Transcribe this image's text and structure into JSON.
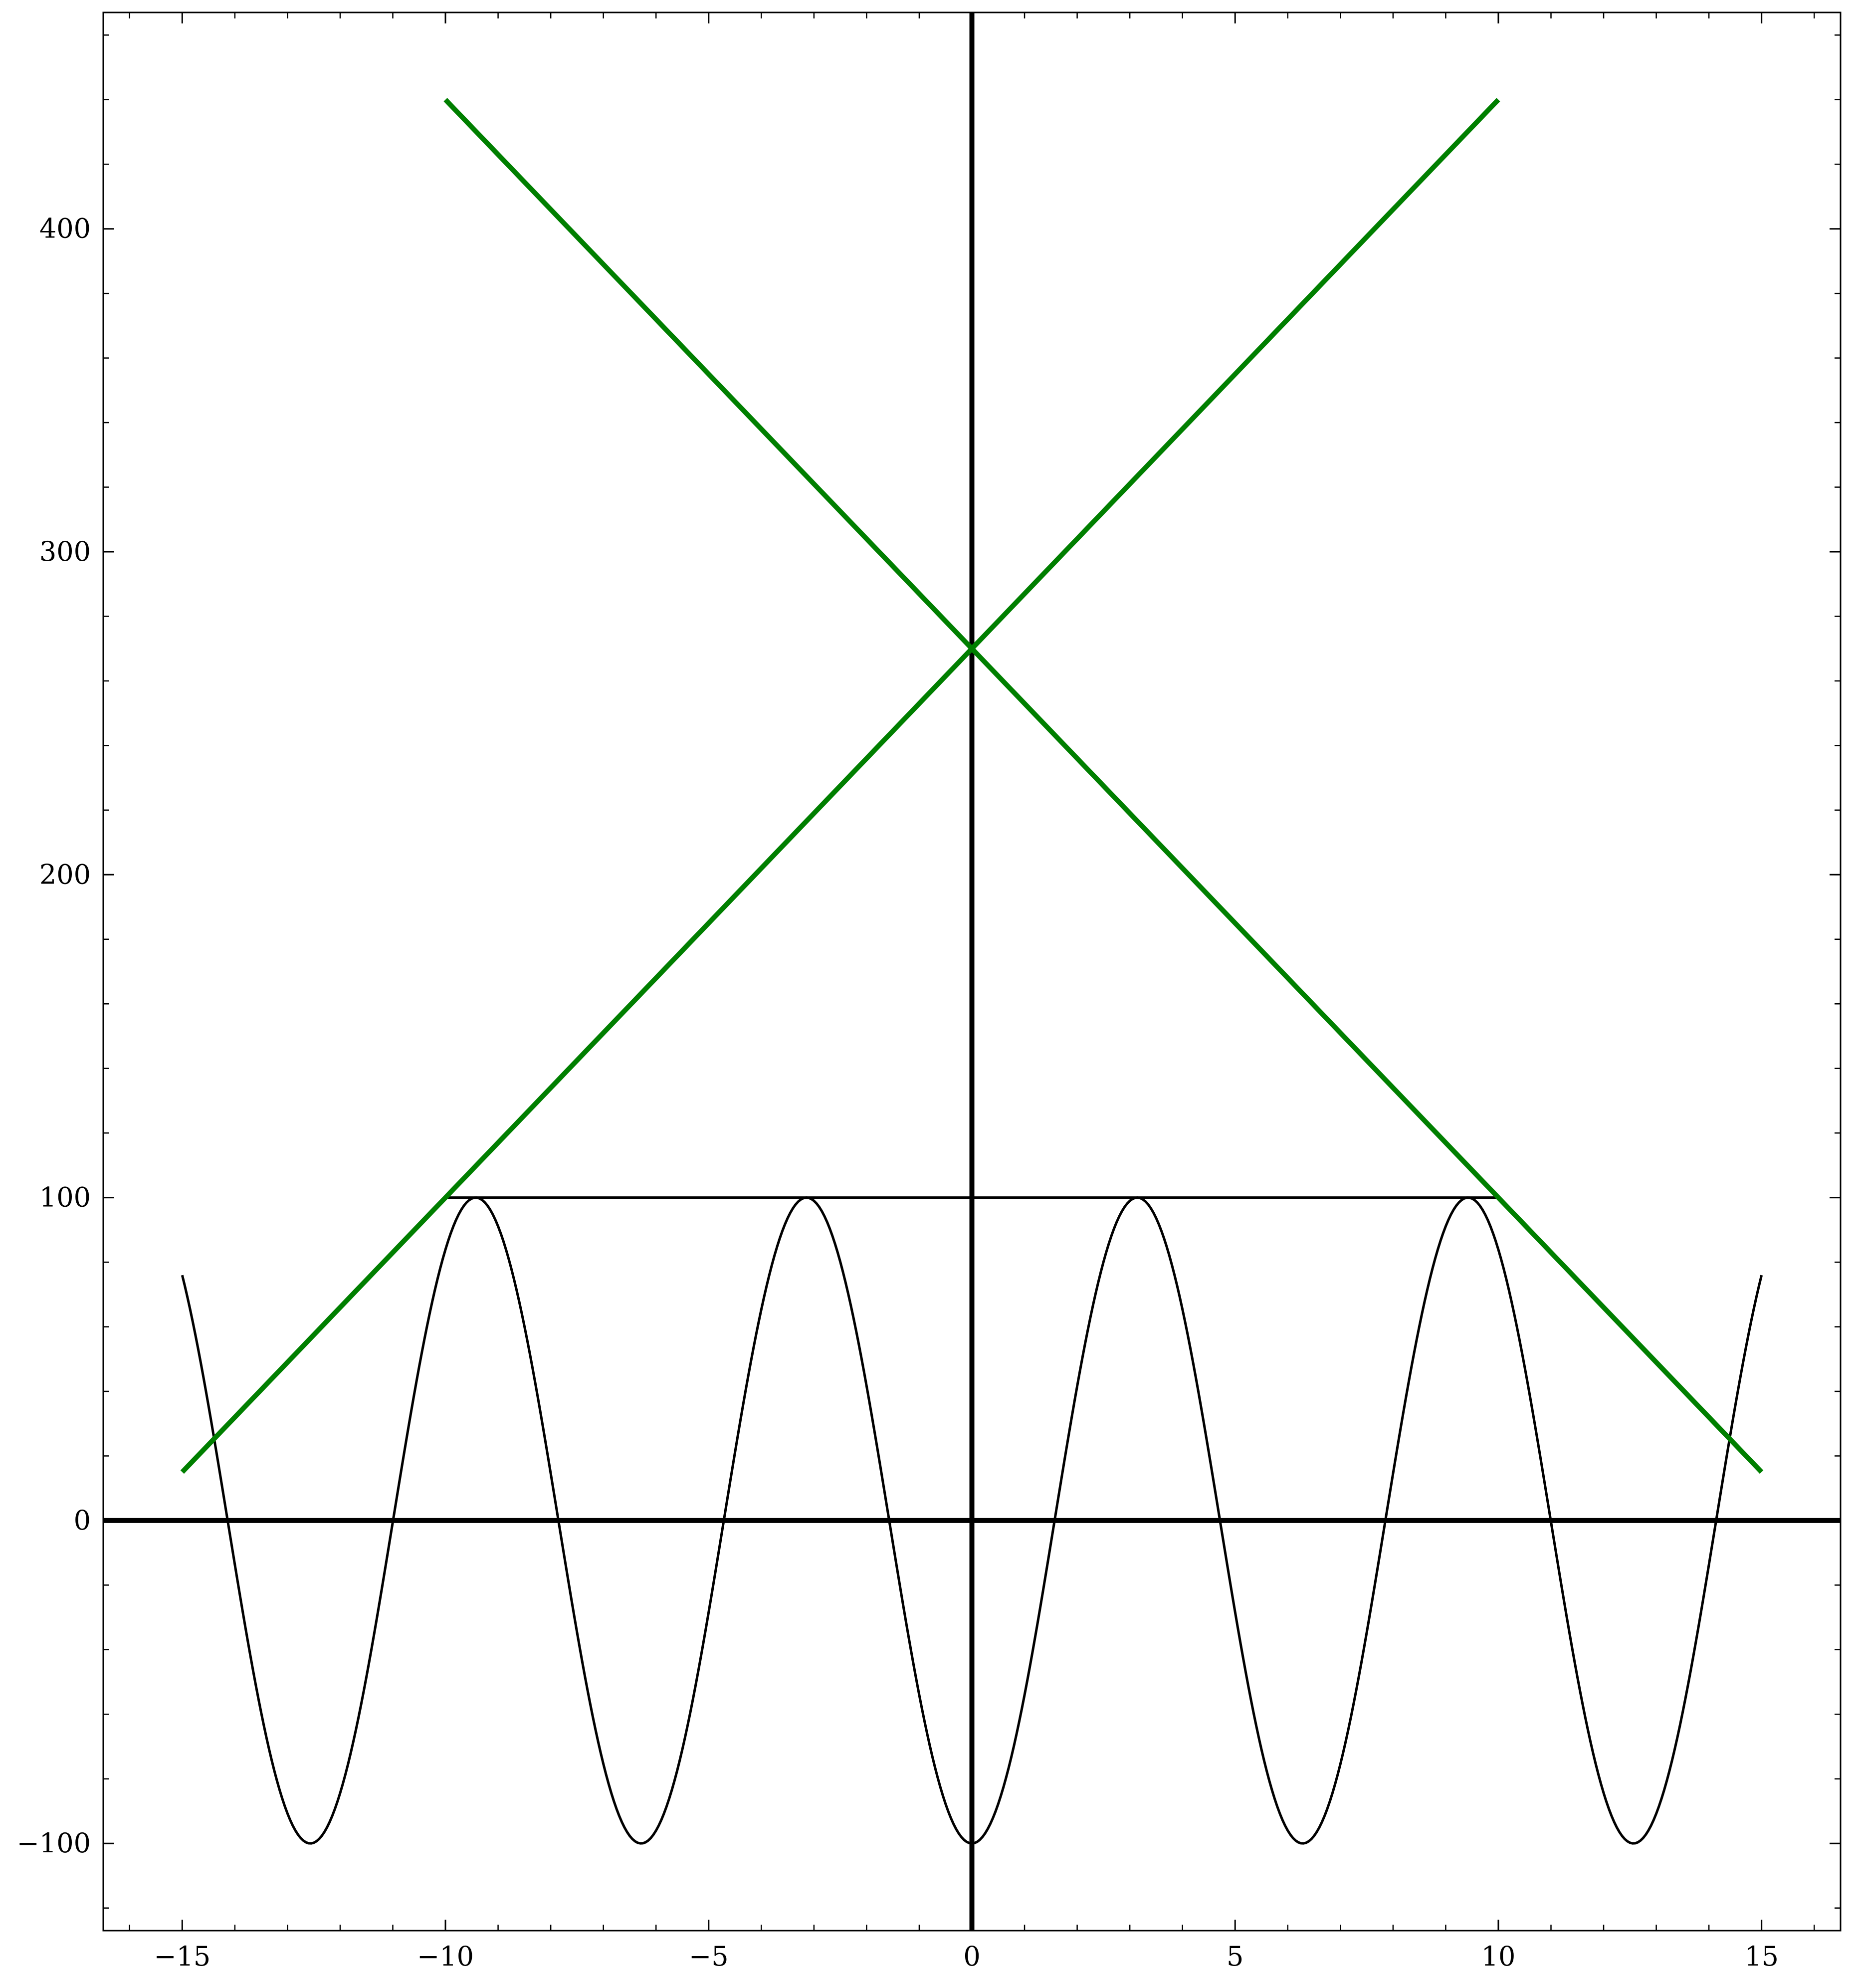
{
  "chart_data": {
    "type": "line",
    "title": "",
    "xlabel": "",
    "ylabel": "",
    "xlim": [
      -16.5,
      16.5
    ],
    "ylim": [
      -127,
      467
    ],
    "grid": false,
    "legend": null,
    "x_ticks": [
      {
        "value": -15,
        "label": "−15"
      },
      {
        "value": -10,
        "label": "−10"
      },
      {
        "value": -5,
        "label": "−5"
      },
      {
        "value": 0,
        "label": "0"
      },
      {
        "value": 5,
        "label": "5"
      },
      {
        "value": 10,
        "label": "10"
      },
      {
        "value": 15,
        "label": "15"
      }
    ],
    "y_ticks": [
      {
        "value": -100,
        "label": "−100"
      },
      {
        "value": 0,
        "label": "0"
      },
      {
        "value": 100,
        "label": "100"
      },
      {
        "value": 200,
        "label": "200"
      },
      {
        "value": 300,
        "label": "300"
      },
      {
        "value": 400,
        "label": "400"
      }
    ],
    "x_minor_step": 1,
    "y_minor_step": 20,
    "axis_lines": {
      "x_at_y": 0,
      "y_at_x": 0
    },
    "series": [
      {
        "kind": "curve",
        "formula": "y = -100*cos(x)",
        "x_range": [
          -15,
          15
        ],
        "color": "#000000",
        "samples": 600
      },
      {
        "kind": "line",
        "x": [
          -10,
          10
        ],
        "y": [
          100,
          100
        ],
        "color": "#000000"
      },
      {
        "kind": "line",
        "x": [
          -15,
          10
        ],
        "y": [
          15,
          440
        ],
        "color": "#007f00"
      },
      {
        "kind": "line",
        "x": [
          -10,
          15
        ],
        "y": [
          440,
          15
        ],
        "color": "#007f00"
      }
    ]
  }
}
